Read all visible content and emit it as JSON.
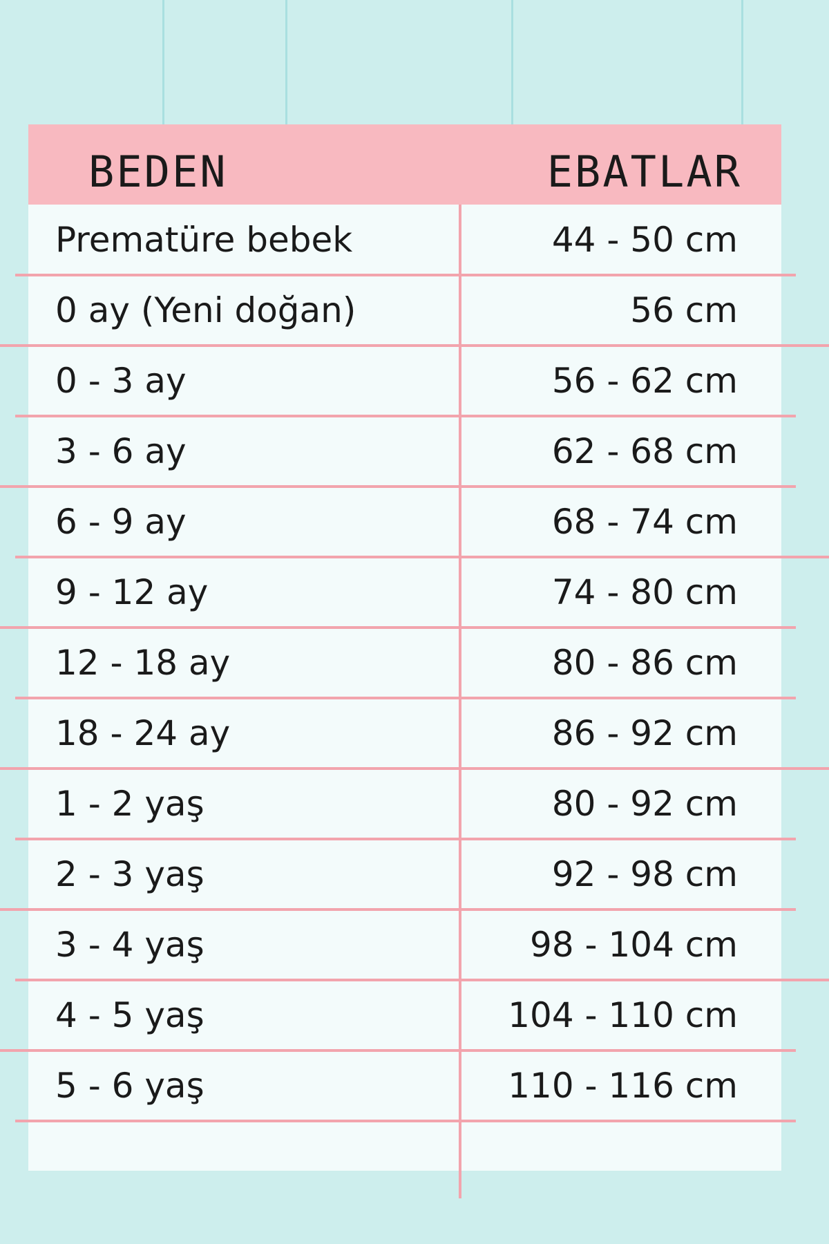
{
  "table": {
    "headers": [
      "BEDEN",
      "EBATLAR"
    ],
    "rows": [
      [
        "Prematüre bebek",
        "44 - 50 cm"
      ],
      [
        "0 ay (Yeni doğan)",
        "56 cm"
      ],
      [
        "0 - 3 ay",
        "56 - 62 cm"
      ],
      [
        "3 - 6 ay",
        "62 - 68 cm"
      ],
      [
        "6 - 9 ay",
        "68 - 74 cm"
      ],
      [
        "9 - 12 ay",
        "74 - 80 cm"
      ],
      [
        "12 - 18 ay",
        "80 - 86 cm"
      ],
      [
        "18 - 24 ay",
        "86 - 92 cm"
      ],
      [
        "1 - 2 yaş",
        "80 - 92 cm"
      ],
      [
        "2 - 3 yaş",
        "92 - 98 cm"
      ],
      [
        "3 - 4 yaş",
        "98 - 104 cm"
      ],
      [
        "4 - 5 yaş",
        "104 - 110 cm"
      ],
      [
        "5 - 6 yaş",
        "110 - 116 cm"
      ]
    ]
  }
}
